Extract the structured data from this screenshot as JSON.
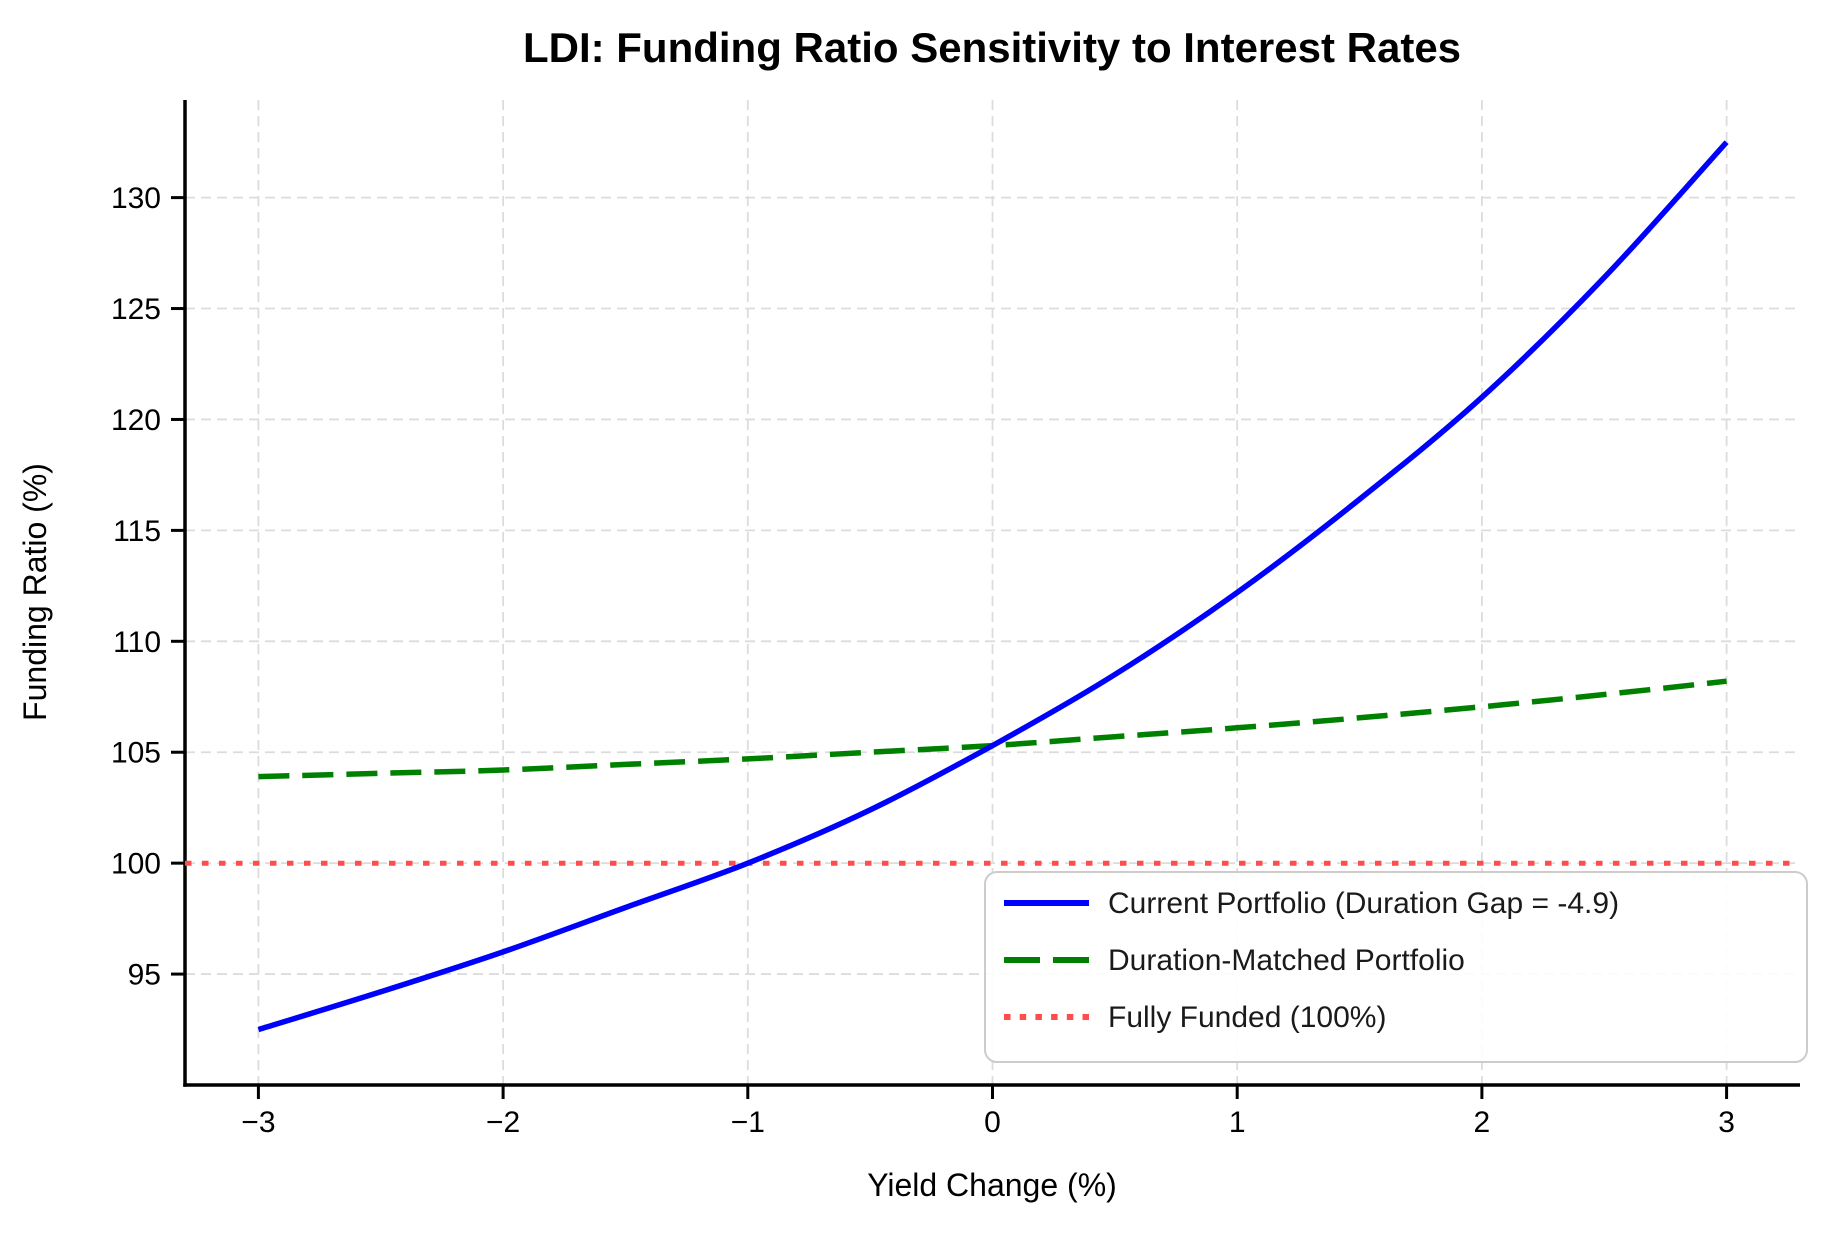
{
  "figure": {
    "background": "#ffffff"
  },
  "chart_data": {
    "type": "line",
    "title": "LDI: Funding Ratio Sensitivity to Interest Rates",
    "xlabel": "Yield Change (%)",
    "ylabel": "Funding Ratio (%)",
    "xlim": [
      -3.3,
      3.3
    ],
    "ylim": [
      90,
      134.4
    ],
    "x_ticks": [
      -3,
      -2,
      -1,
      0,
      1,
      2,
      3
    ],
    "x_tick_labels": [
      "−3",
      "−2",
      "−1",
      "0",
      "1",
      "2",
      "3"
    ],
    "y_ticks": [
      95,
      100,
      105,
      110,
      115,
      120,
      125,
      130
    ],
    "y_tick_labels": [
      "95",
      "100",
      "105",
      "110",
      "115",
      "120",
      "125",
      "130"
    ],
    "grid": true,
    "legend_position": "lower right",
    "x": [
      -3,
      -2.5,
      -2,
      -1.5,
      -1,
      -0.5,
      0,
      0.5,
      1,
      1.5,
      2,
      2.5,
      3
    ],
    "series": [
      {
        "name": "Current Portfolio (Duration Gap = -4.9)",
        "color": "#0000ff",
        "style": "solid",
        "width": 5.5,
        "values": [
          92.5,
          94.2,
          96.0,
          98.0,
          100.0,
          102.4,
          105.3,
          108.5,
          112.2,
          116.4,
          121.0,
          126.4,
          132.5
        ]
      },
      {
        "name": "Duration-Matched Portfolio",
        "color": "#008000",
        "style": "dashed",
        "width": 5.5,
        "values": [
          103.9,
          104.05,
          104.2,
          104.45,
          104.7,
          105.0,
          105.3,
          105.7,
          106.1,
          106.55,
          107.05,
          107.6,
          108.2
        ]
      },
      {
        "name": "Fully Funded (100%)",
        "color": "#ff4d4d",
        "style": "dotted",
        "width": 5,
        "hline": 100,
        "values": [
          100,
          100,
          100,
          100,
          100,
          100,
          100,
          100,
          100,
          100,
          100,
          100,
          100
        ]
      }
    ],
    "colors": {
      "grid": "#dcdcdc",
      "spine": "#000000",
      "text": "#000000",
      "legend_border": "#cccccc",
      "legend_bg": "#ffffff"
    }
  }
}
